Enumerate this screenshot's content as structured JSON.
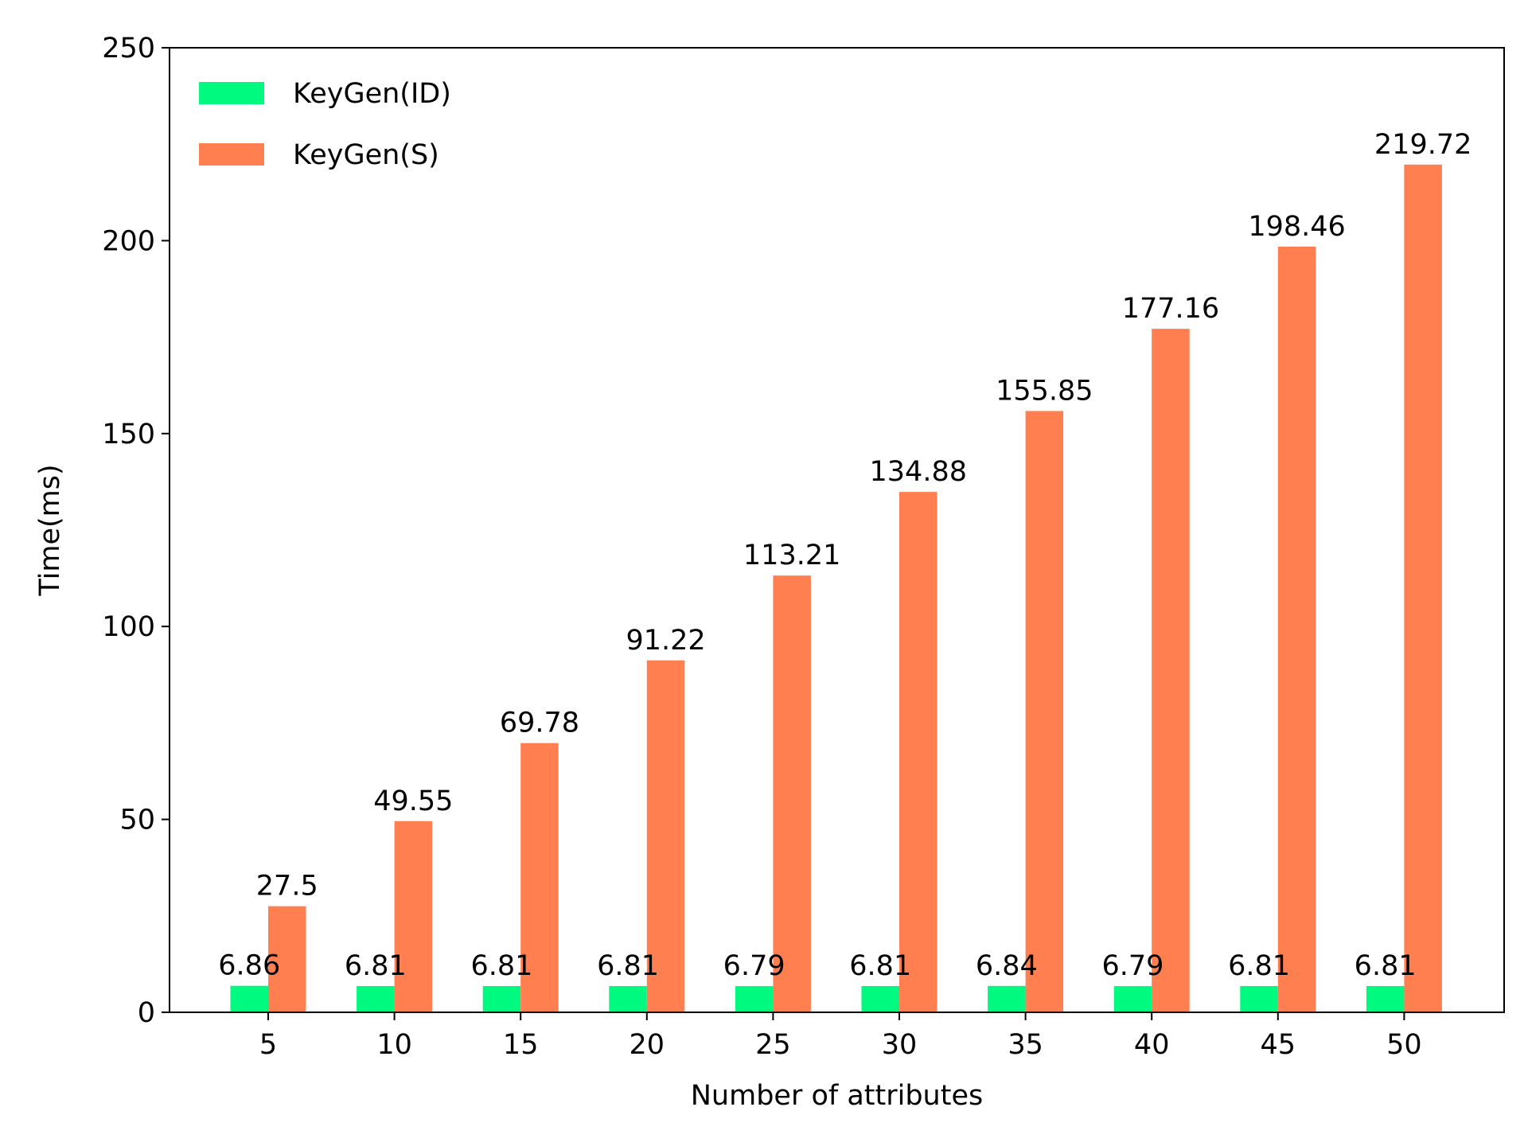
{
  "chart_data": {
    "type": "bar",
    "title": "",
    "xlabel": "Number of attributes",
    "ylabel": "Time(ms)",
    "categories": [
      "5",
      "10",
      "15",
      "20",
      "25",
      "30",
      "35",
      "40",
      "45",
      "50"
    ],
    "ylim": [
      0,
      250
    ],
    "yticks": [
      "0",
      "50",
      "100",
      "150",
      "200",
      "250"
    ],
    "grid": false,
    "legend_position": "top-left",
    "series": [
      {
        "name": "KeyGen(ID)",
        "color": "#00fa7f",
        "values": [
          6.86,
          6.81,
          6.81,
          6.81,
          6.79,
          6.81,
          6.84,
          6.79,
          6.81,
          6.81
        ],
        "labels": [
          "6.86",
          "6.81",
          "6.81",
          "6.81",
          "6.79",
          "6.81",
          "6.84",
          "6.79",
          "6.81",
          "6.81"
        ]
      },
      {
        "name": "KeyGen(S)",
        "color": "#ff7f50",
        "values": [
          27.5,
          49.55,
          69.78,
          91.22,
          113.21,
          134.88,
          155.85,
          177.16,
          198.46,
          219.72
        ],
        "labels": [
          "27.5",
          "49.55",
          "69.78",
          "91.22",
          "113.21",
          "134.88",
          "155.85",
          "177.16",
          "198.46",
          "219.72"
        ]
      }
    ]
  }
}
